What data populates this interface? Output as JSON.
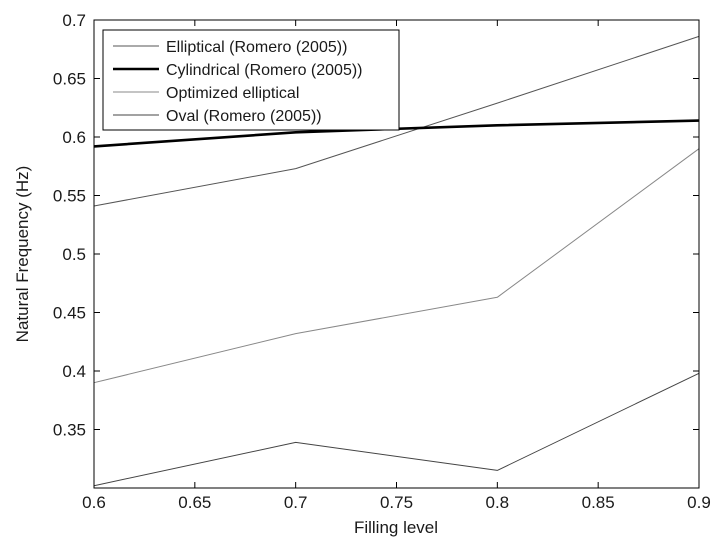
{
  "chart_data": {
    "type": "line",
    "xlabel": "Filling level",
    "ylabel": "Natural Frequency (Hz)",
    "xlim": [
      0.6,
      0.9
    ],
    "ylim": [
      0.3,
      0.7
    ],
    "xticks": [
      0.6,
      0.65,
      0.7,
      0.75,
      0.8,
      0.85,
      0.9
    ],
    "yticks": [
      0.35,
      0.4,
      0.45,
      0.5,
      0.55,
      0.6,
      0.65,
      0.7
    ],
    "grid": false,
    "legend_position": "top-left",
    "x": [
      0.6,
      0.7,
      0.8,
      0.9
    ],
    "series": [
      {
        "name": "Elliptical (Romero (2005))",
        "values": [
          0.541,
          0.573,
          0.629,
          0.686
        ],
        "color": "#555555",
        "weight": "thin"
      },
      {
        "name": "Cylindrical (Romero (2005))",
        "values": [
          0.592,
          0.604,
          0.61,
          0.614
        ],
        "color": "#000000",
        "weight": "thick"
      },
      {
        "name": "Optimized elliptical",
        "values": [
          0.39,
          0.432,
          0.463,
          0.59
        ],
        "color": "#888888",
        "weight": "thin"
      },
      {
        "name": "Oval (Romero (2005))",
        "values": [
          0.302,
          0.339,
          0.315,
          0.398
        ],
        "color": "#444444",
        "weight": "thin"
      }
    ]
  }
}
